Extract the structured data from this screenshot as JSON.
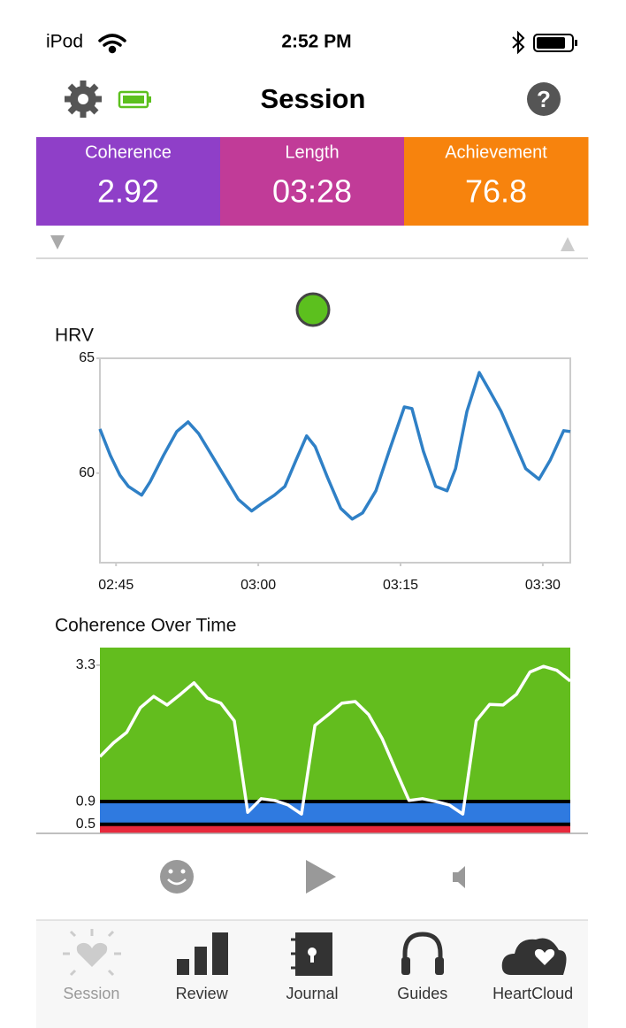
{
  "status_bar": {
    "carrier": "iPod",
    "time": "2:52 PM"
  },
  "header": {
    "title": "Session"
  },
  "stats": [
    {
      "label": "Coherence",
      "value": "2.92",
      "color": "#8f3fc8"
    },
    {
      "label": "Length",
      "value": "03:28",
      "color": "#c13b98"
    },
    {
      "label": "Achievement",
      "value": "76.8",
      "color": "#f7830d"
    }
  ],
  "chart_data": [
    {
      "type": "line",
      "title": "HRV",
      "color": "#2f80c6",
      "x": [
        163.3,
        164.4,
        165.4,
        166.3,
        167.7,
        168.6,
        170.0,
        171.4,
        172.6,
        173.7,
        175.1,
        176.5,
        177.9,
        179.3,
        180.3,
        181.7,
        182.8,
        184.0,
        185.1,
        186.0,
        187.3,
        188.7,
        189.9,
        191.0,
        192.4,
        193.8,
        195.4,
        196.2,
        197.4,
        198.7,
        199.9,
        200.8,
        202.0,
        203.3,
        204.3,
        205.6,
        206.8,
        208.2,
        209.6,
        210.8,
        212.2,
        212.9
      ],
      "values": [
        61.92,
        60.77,
        59.92,
        59.42,
        59.04,
        59.62,
        60.77,
        61.81,
        62.23,
        61.73,
        60.77,
        59.81,
        58.85,
        58.35,
        58.65,
        59.04,
        59.42,
        60.58,
        61.62,
        61.15,
        59.81,
        58.46,
        58.0,
        58.27,
        59.23,
        60.96,
        62.88,
        62.81,
        60.96,
        59.42,
        59.23,
        60.19,
        62.69,
        64.38,
        63.65,
        62.69,
        61.54,
        60.19,
        59.73,
        60.58,
        61.85,
        61.81
      ],
      "xlim": [
        163.3,
        212.9
      ],
      "ylim": [
        56.1,
        65
      ],
      "xticks": [
        {
          "value": 165,
          "label": "02:45"
        },
        {
          "value": 180,
          "label": "03:00"
        },
        {
          "value": 195,
          "label": "03:15"
        },
        {
          "value": 210,
          "label": "03:30"
        }
      ],
      "yticks": [
        60,
        65
      ]
    },
    {
      "type": "line",
      "title": "Coherence Over Time",
      "color": "#ffffff",
      "values": [
        1.69,
        1.93,
        2.12,
        2.55,
        2.75,
        2.6,
        2.79,
        2.99,
        2.72,
        2.63,
        2.32,
        0.71,
        0.95,
        0.92,
        0.84,
        0.68,
        2.24,
        2.43,
        2.63,
        2.66,
        2.43,
        2.01,
        1.46,
        0.92,
        0.95,
        0.9,
        0.84,
        0.68,
        2.32,
        2.61,
        2.6,
        2.79,
        3.18,
        3.28,
        3.21,
        3.02
      ],
      "ylim": [
        0.34,
        3.61
      ],
      "yticks": [
        0.5,
        0.9,
        3.3
      ],
      "zone_colors": [
        "#e8283c",
        "#2f7ae0",
        "#63bd1e"
      ]
    }
  ],
  "tabs": [
    {
      "label": "Session",
      "selected": true
    },
    {
      "label": "Review",
      "selected": false
    },
    {
      "label": "Journal",
      "selected": false
    },
    {
      "label": "Guides",
      "selected": false
    },
    {
      "label": "HeartCloud",
      "selected": false
    }
  ]
}
